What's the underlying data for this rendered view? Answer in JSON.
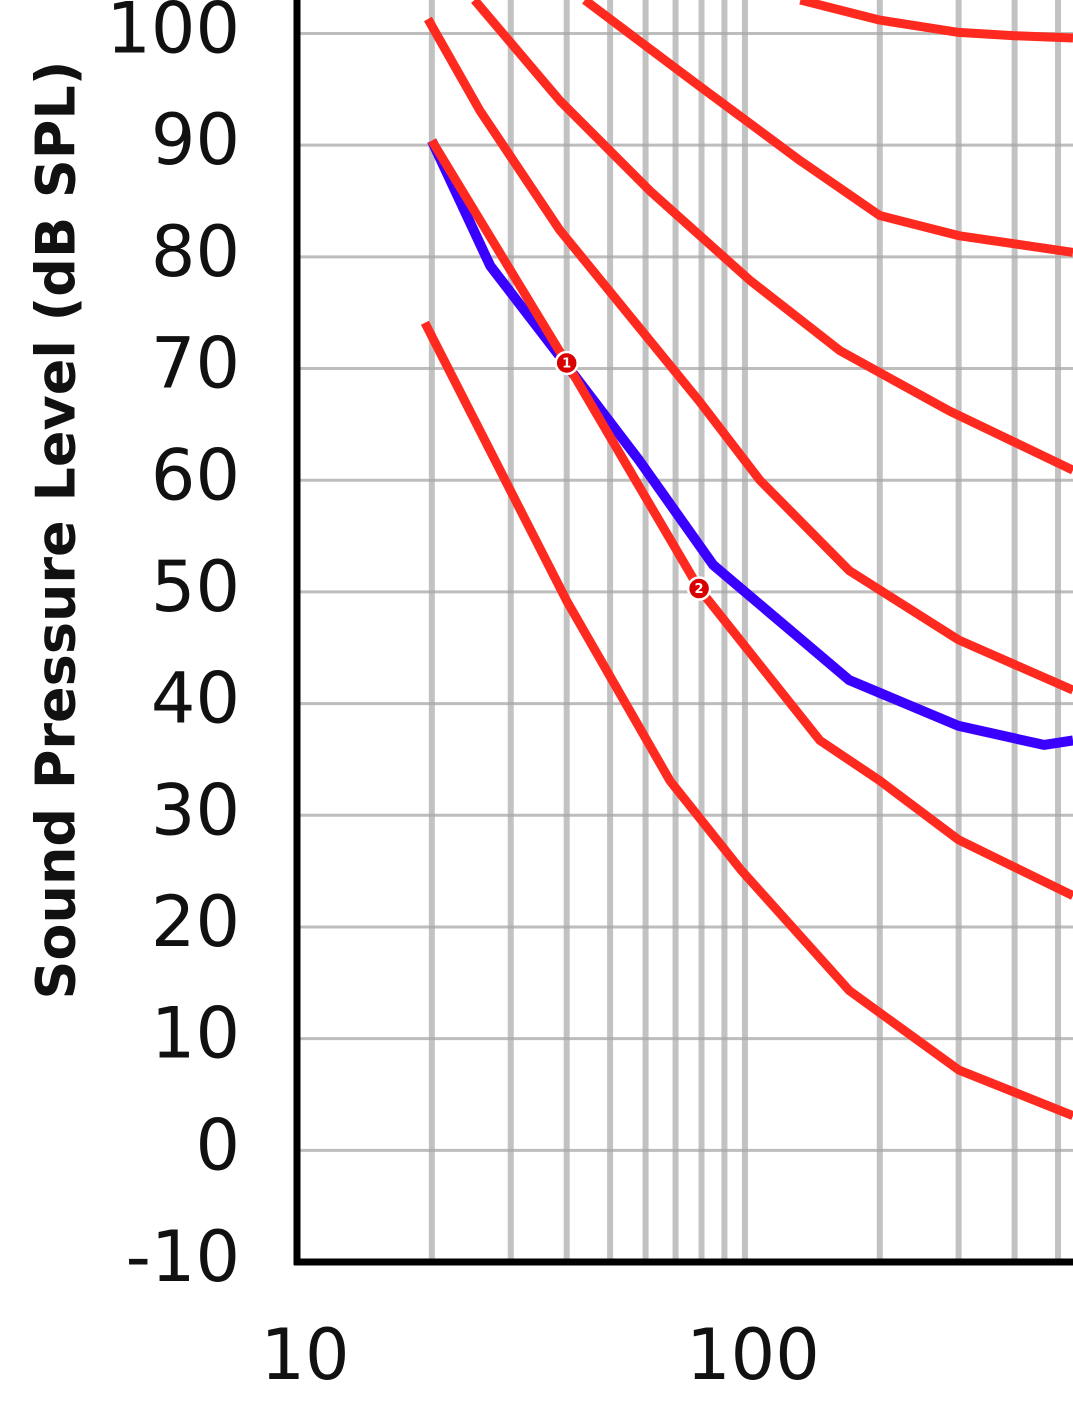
{
  "chart_data": {
    "type": "line",
    "y_label": "Sound Pressure Level (dB SPL)",
    "xscale": "log",
    "xlim": [
      10,
      540
    ],
    "xticks": [
      10,
      100
    ],
    "xminor": [
      20,
      30,
      40,
      50,
      60,
      70,
      80,
      90,
      200,
      300,
      400,
      500
    ],
    "ylim": [
      -10,
      103
    ],
    "yticks": [
      -10,
      0,
      10,
      20,
      30,
      40,
      50,
      60,
      70,
      80,
      90,
      100
    ],
    "grid": true,
    "series": [
      {
        "color": "#ff2a1f",
        "x": [
          133,
          200,
          300,
          400,
          540
        ],
        "values": [
          103,
          101.2,
          100.1,
          99.8,
          99.6
        ]
      },
      {
        "color": "#ff2a1f",
        "x": [
          43.9,
          79.1,
          133,
          200,
          300,
          540
        ],
        "values": [
          103,
          95.3,
          88.6,
          83.7,
          81.9,
          80.4
        ]
      },
      {
        "color": "#ff2a1f",
        "x": [
          24.9,
          38.6,
          61.4,
          102.6,
          163,
          286,
          540
        ],
        "values": [
          103,
          94,
          85.9,
          77.9,
          71.6,
          66.2,
          60.9
        ]
      },
      {
        "color": "#ff2a1f",
        "x": [
          19.6,
          25.6,
          38.6,
          79,
          108,
          171,
          300,
          540
        ],
        "values": [
          101.3,
          93.1,
          82.4,
          67.1,
          60,
          51.9,
          45.7,
          41.2
        ]
      },
      {
        "color": "#3a00ff",
        "x": [
          20,
          27,
          40,
          58,
          85,
          171,
          300,
          465,
          540
        ],
        "values": [
          90.4,
          79.2,
          70.3,
          61.8,
          52.4,
          42.1,
          38,
          36.3,
          36.7
        ]
      },
      {
        "color": "#ff2a1f",
        "x": [
          20,
          40,
          79,
          147,
          200,
          300,
          540
        ],
        "values": [
          90.4,
          70.5,
          50.3,
          36.7,
          33.1,
          27.8,
          22.8
        ]
      },
      {
        "color": "#ff2a1f",
        "x": [
          19.3,
          40,
          68,
          98,
          171,
          300,
          540
        ],
        "values": [
          74.1,
          49.2,
          33.1,
          25.1,
          14.3,
          7.2,
          3.1
        ]
      }
    ],
    "annotations": [
      {
        "label": "1",
        "x": 40,
        "y": 70.5
      },
      {
        "label": "2",
        "x": 79,
        "y": 50.3
      }
    ]
  }
}
